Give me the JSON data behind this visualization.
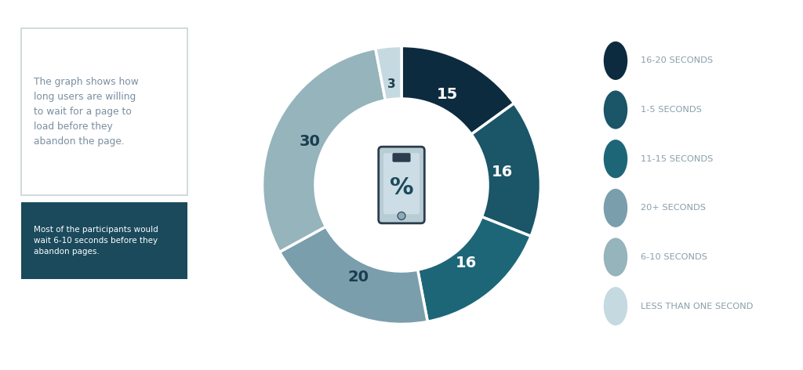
{
  "slices": [
    15,
    16,
    16,
    20,
    30,
    3
  ],
  "labels": [
    "15",
    "16",
    "16",
    "20",
    "30",
    "3"
  ],
  "colors": [
    "#0d2b3e",
    "#1a5568",
    "#1d6678",
    "#7a9eac",
    "#95b4bc",
    "#c5d9e0"
  ],
  "legend_labels": [
    "16-20 SECONDS",
    "1-5 SECONDS",
    "11-15 SECONDS",
    "20+ SECONDS",
    "6-10 SECONDS",
    "LESS THAN ONE SECOND"
  ],
  "legend_colors": [
    "#0d2b3e",
    "#1a5568",
    "#1d6678",
    "#7a9eac",
    "#95b4bc",
    "#c5d9e0"
  ],
  "description_text": "The graph shows how\nlong users are willing\nto wait for a page to\nload before they\nabandon the page.",
  "note_text": "Most of the participants would\nwait 6-10 seconds before they\nabandon pages.",
  "note_bg": "#1a4a5c",
  "bg_color": "#ffffff",
  "label_color_dark": "#1a3d50"
}
